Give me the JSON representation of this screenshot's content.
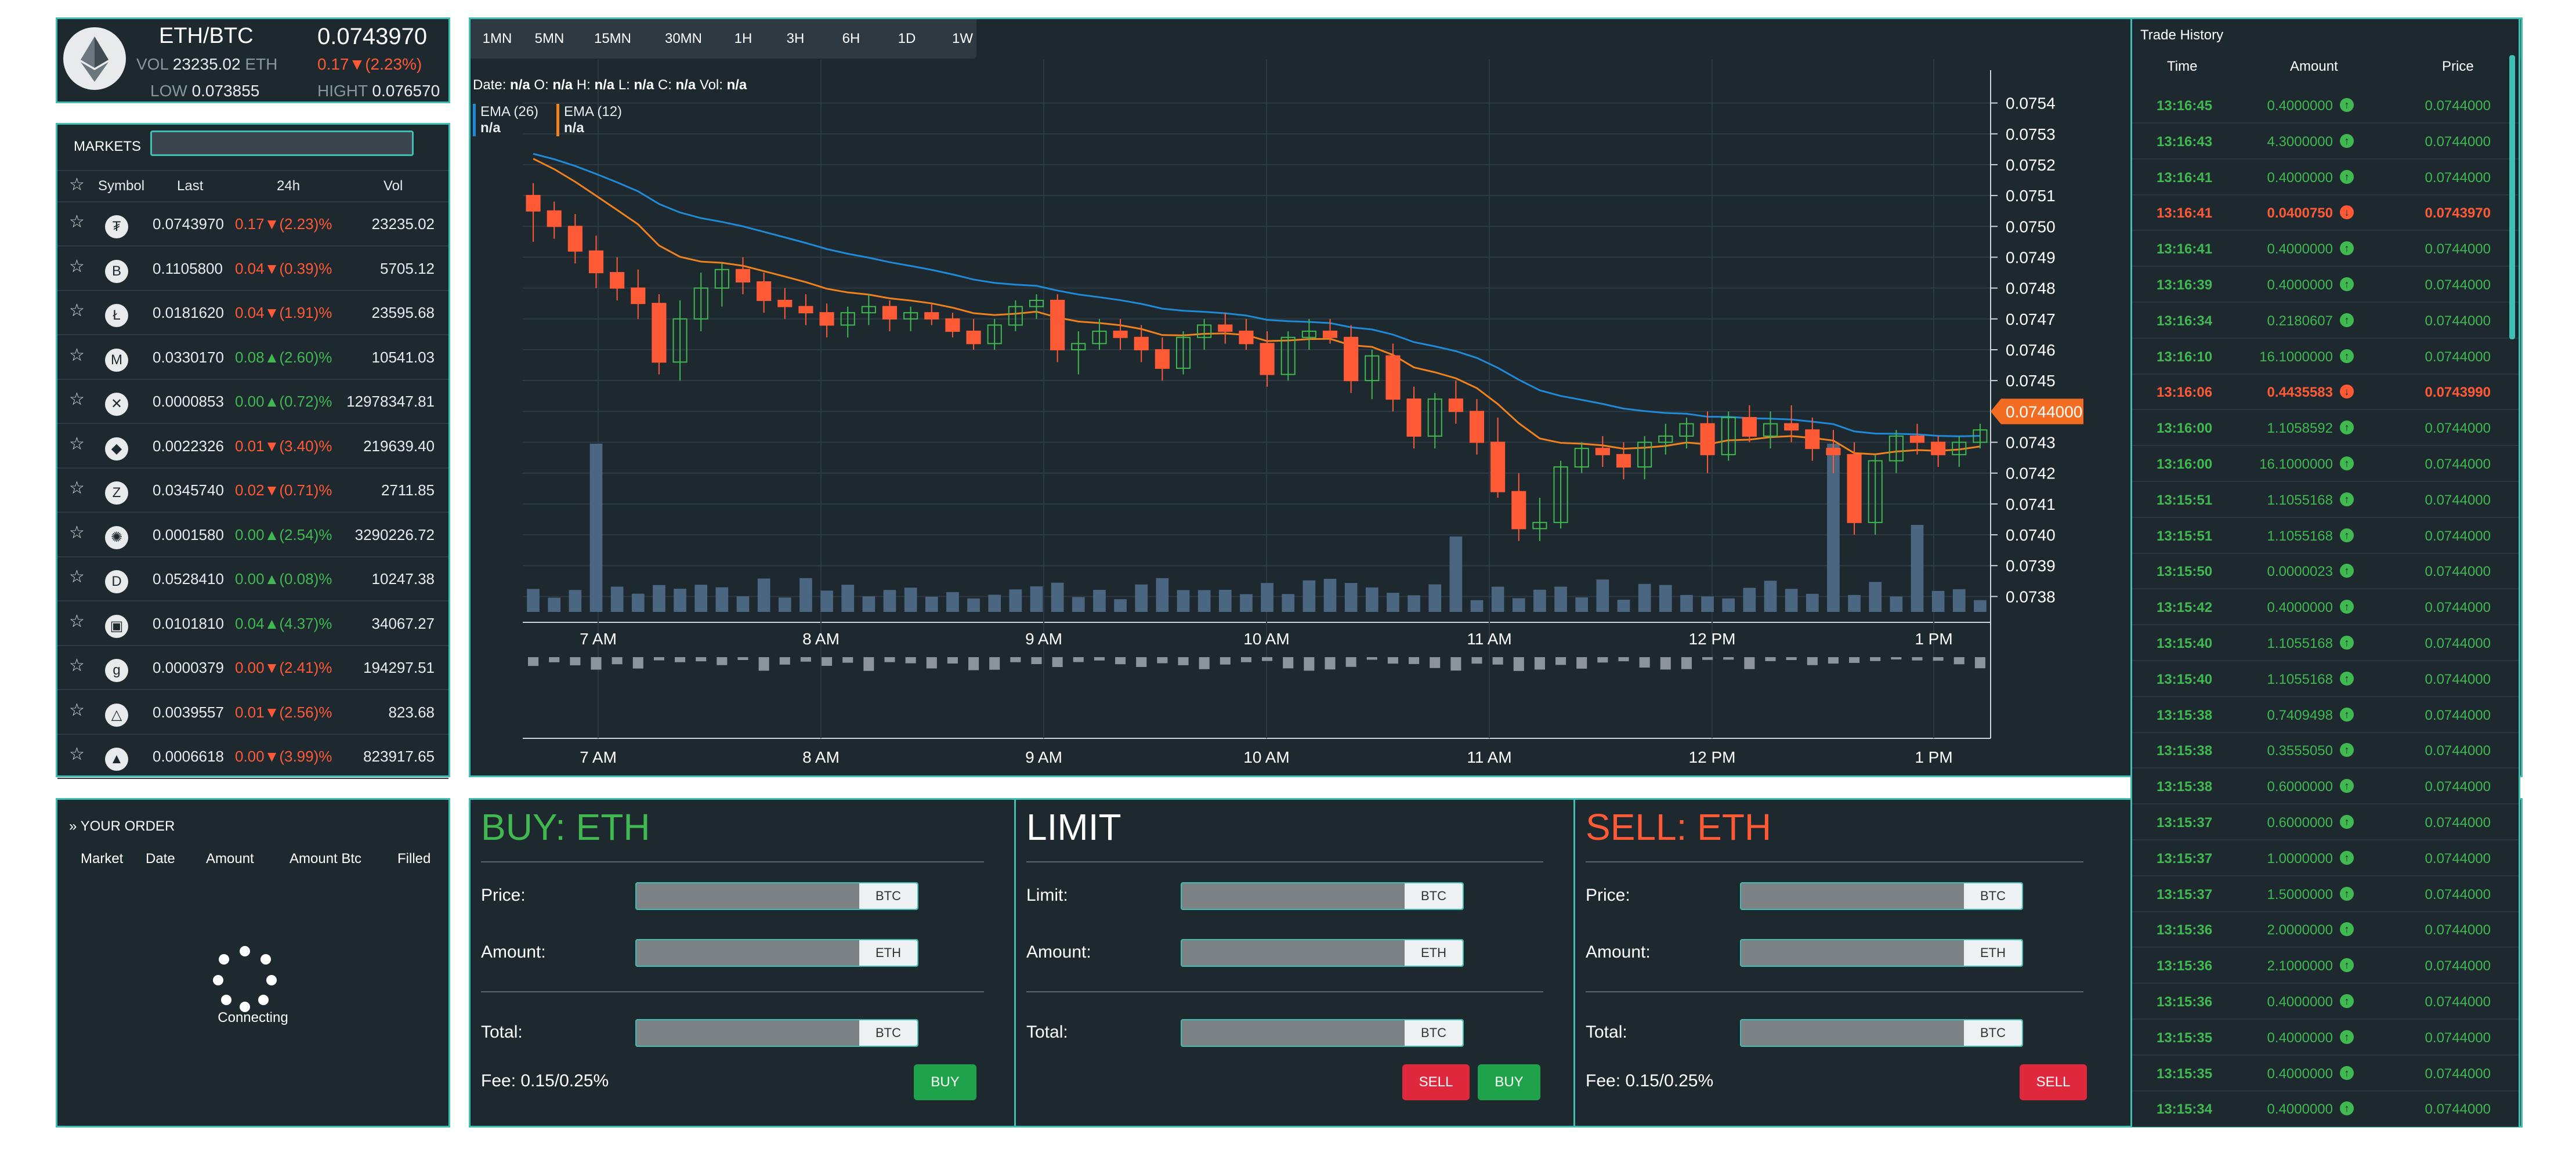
{
  "ticker": {
    "pair": "ETH/BTC",
    "price": "0.0743970",
    "vol_label": "VOL",
    "vol_value": "23235.02",
    "vol_unit": "ETH",
    "change": "0.17▼(2.23%)",
    "low_label": "LOW",
    "low_value": "0.073855",
    "high_label": "HIGHT",
    "high_value": "0.076570"
  },
  "markets": {
    "title": "MARKETS",
    "search_placeholder": "",
    "headers": {
      "symbol": "Symbol",
      "last": "Last",
      "h24": "24h",
      "vol": "Vol"
    },
    "rows": [
      {
        "icon": "tether-coin-icon",
        "glyph": "₮",
        "last": "0.0743970",
        "change": "0.17▼(2.23)%",
        "dir": "down",
        "vol": "23235.02"
      },
      {
        "icon": "bitcoin-coin-icon",
        "glyph": "B",
        "last": "0.1105800",
        "change": "0.04▼(0.39)%",
        "dir": "down",
        "vol": "5705.12"
      },
      {
        "icon": "litecoin-coin-icon",
        "glyph": "Ł",
        "last": "0.0181620",
        "change": "0.04▼(1.91)%",
        "dir": "down",
        "vol": "23595.68"
      },
      {
        "icon": "monero-coin-icon",
        "glyph": "M",
        "last": "0.0330170",
        "change": "0.08▲(2.60)%",
        "dir": "up",
        "vol": "10541.03"
      },
      {
        "icon": "ripple-coin-icon",
        "glyph": "✕",
        "last": "0.0000853",
        "change": "0.00▲(0.72)%",
        "dir": "up",
        "vol": "12978347.81"
      },
      {
        "icon": "ethereum-coin-icon",
        "glyph": "◆",
        "last": "0.0022326",
        "change": "0.01▼(3.40)%",
        "dir": "down",
        "vol": "219639.40"
      },
      {
        "icon": "zcash-coin-icon",
        "glyph": "Z",
        "last": "0.0345740",
        "change": "0.02▼(0.71)%",
        "dir": "down",
        "vol": "2711.85"
      },
      {
        "icon": "iota-coin-icon",
        "glyph": "✺",
        "last": "0.0001580",
        "change": "0.00▲(2.54)%",
        "dir": "up",
        "vol": "3290226.72"
      },
      {
        "icon": "dash-coin-icon",
        "glyph": "D",
        "last": "0.0528410",
        "change": "0.00▲(0.08)%",
        "dir": "up",
        "vol": "10247.38"
      },
      {
        "icon": "cube-coin-icon",
        "glyph": "▣",
        "last": "0.0101810",
        "change": "0.04▲(4.37)%",
        "dir": "up",
        "vol": "34067.27"
      },
      {
        "icon": "golem-coin-icon",
        "glyph": "g",
        "last": "0.0000379",
        "change": "0.00▼(2.41)%",
        "dir": "down",
        "vol": "194297.51"
      },
      {
        "icon": "triangle-coin-icon",
        "glyph": "△",
        "last": "0.0039557",
        "change": "0.01▼(2.56)%",
        "dir": "down",
        "vol": "823.68"
      },
      {
        "icon": "eos-coin-icon",
        "glyph": "▲",
        "last": "0.0006618",
        "change": "0.00▼(3.99)%",
        "dir": "down",
        "vol": "823917.65"
      }
    ]
  },
  "orders": {
    "title": "YOUR ORDER",
    "headers": {
      "market": "Market",
      "date": "Date",
      "amount": "Amount",
      "amount_btc": "Amount Btc",
      "filled": "Filled"
    },
    "status": "Connecting"
  },
  "chart": {
    "timeframes": [
      "1MN",
      "5MN",
      "15MN",
      "30MN",
      "1H",
      "3H",
      "6H",
      "1D",
      "1W"
    ],
    "ohlc": {
      "date_label": "Date:",
      "date": "n/a",
      "o_label": "O:",
      "o": "n/a",
      "h_label": "H:",
      "h": "n/a",
      "l_label": "L:",
      "l": "n/a",
      "c_label": "C:",
      "c": "n/a",
      "vol_label": "Vol:",
      "vol": "n/a"
    },
    "legend": [
      {
        "name": "EMA (26)",
        "value": "n/a",
        "color": "#1f8ad6"
      },
      {
        "name": "EMA (12)",
        "value": "n/a",
        "color": "#f0821e"
      }
    ],
    "last_price_label": "0.0744000",
    "up_color": "#3fb950",
    "down_color": "#ff5a36"
  },
  "chart_data": {
    "type": "candlestick",
    "x_ticks": [
      "7 AM",
      "8 AM",
      "9 AM",
      "10 AM",
      "11 AM",
      "12 PM",
      "1 PM"
    ],
    "y_ticks": [
      "0.0754",
      "0.0753",
      "0.0752",
      "0.0751",
      "0.0750",
      "0.0749",
      "0.0748",
      "0.0747",
      "0.0746",
      "0.0745",
      "0.0744",
      "0.0743",
      "0.0742",
      "0.0741",
      "0.0740",
      "0.0739",
      "0.0738"
    ],
    "ylim": [
      0.07375,
      0.07545
    ],
    "last_price": 0.0744,
    "candles": [
      [
        0.0751,
        0.07514,
        0.07495,
        0.07505
      ],
      [
        0.07505,
        0.07508,
        0.07496,
        0.075
      ],
      [
        0.075,
        0.07504,
        0.07488,
        0.07492
      ],
      [
        0.07492,
        0.07497,
        0.0748,
        0.07485
      ],
      [
        0.07485,
        0.0749,
        0.07476,
        0.0748
      ],
      [
        0.0748,
        0.07486,
        0.0747,
        0.07475
      ],
      [
        0.07475,
        0.07478,
        0.07452,
        0.07456
      ],
      [
        0.07456,
        0.07476,
        0.0745,
        0.0747
      ],
      [
        0.0747,
        0.07485,
        0.07466,
        0.0748
      ],
      [
        0.0748,
        0.07488,
        0.07474,
        0.07486
      ],
      [
        0.07486,
        0.0749,
        0.07478,
        0.07482
      ],
      [
        0.07482,
        0.07485,
        0.07472,
        0.07476
      ],
      [
        0.07476,
        0.0748,
        0.0747,
        0.07474
      ],
      [
        0.07474,
        0.07478,
        0.07468,
        0.07472
      ],
      [
        0.07472,
        0.07475,
        0.07464,
        0.07468
      ],
      [
        0.07468,
        0.07474,
        0.07464,
        0.07472
      ],
      [
        0.07472,
        0.07478,
        0.07468,
        0.07474
      ],
      [
        0.07474,
        0.07476,
        0.07466,
        0.0747
      ],
      [
        0.0747,
        0.07474,
        0.07466,
        0.07472
      ],
      [
        0.07472,
        0.07475,
        0.07468,
        0.0747
      ],
      [
        0.0747,
        0.07472,
        0.07464,
        0.07466
      ],
      [
        0.07466,
        0.0747,
        0.0746,
        0.07462
      ],
      [
        0.07462,
        0.0747,
        0.0746,
        0.07468
      ],
      [
        0.07468,
        0.07476,
        0.07466,
        0.07474
      ],
      [
        0.07474,
        0.07478,
        0.0747,
        0.07476
      ],
      [
        0.07476,
        0.07478,
        0.07456,
        0.0746
      ],
      [
        0.0746,
        0.07466,
        0.07452,
        0.07462
      ],
      [
        0.07462,
        0.0747,
        0.0746,
        0.07466
      ],
      [
        0.07466,
        0.0747,
        0.0746,
        0.07464
      ],
      [
        0.07464,
        0.07468,
        0.07456,
        0.0746
      ],
      [
        0.0746,
        0.07464,
        0.0745,
        0.07454
      ],
      [
        0.07454,
        0.07466,
        0.07452,
        0.07464
      ],
      [
        0.07464,
        0.0747,
        0.0746,
        0.07468
      ],
      [
        0.07468,
        0.07472,
        0.07462,
        0.07466
      ],
      [
        0.07466,
        0.0747,
        0.0746,
        0.07462
      ],
      [
        0.07462,
        0.07466,
        0.07448,
        0.07452
      ],
      [
        0.07452,
        0.07466,
        0.0745,
        0.07464
      ],
      [
        0.07464,
        0.0747,
        0.0746,
        0.07466
      ],
      [
        0.07466,
        0.0747,
        0.07462,
        0.07464
      ],
      [
        0.07464,
        0.07468,
        0.07446,
        0.0745
      ],
      [
        0.0745,
        0.0746,
        0.07444,
        0.07458
      ],
      [
        0.07458,
        0.07462,
        0.0744,
        0.07444
      ],
      [
        0.07444,
        0.07448,
        0.07428,
        0.07432
      ],
      [
        0.07432,
        0.07446,
        0.07428,
        0.07444
      ],
      [
        0.07444,
        0.0745,
        0.07436,
        0.0744
      ],
      [
        0.0744,
        0.07444,
        0.07426,
        0.0743
      ],
      [
        0.0743,
        0.07438,
        0.07412,
        0.07414
      ],
      [
        0.07414,
        0.0742,
        0.07398,
        0.07402
      ],
      [
        0.07402,
        0.07412,
        0.07398,
        0.07404
      ],
      [
        0.07404,
        0.07424,
        0.07402,
        0.07422
      ],
      [
        0.07422,
        0.0743,
        0.0742,
        0.07428
      ],
      [
        0.07428,
        0.07432,
        0.07422,
        0.07426
      ],
      [
        0.07426,
        0.0743,
        0.07418,
        0.07422
      ],
      [
        0.07422,
        0.07432,
        0.07418,
        0.0743
      ],
      [
        0.0743,
        0.07436,
        0.07426,
        0.07432
      ],
      [
        0.07432,
        0.07438,
        0.07428,
        0.07436
      ],
      [
        0.07436,
        0.0744,
        0.0742,
        0.07426
      ],
      [
        0.07426,
        0.0744,
        0.07424,
        0.07438
      ],
      [
        0.07438,
        0.07442,
        0.0743,
        0.07432
      ],
      [
        0.07432,
        0.0744,
        0.07428,
        0.07436
      ],
      [
        0.07436,
        0.07442,
        0.0743,
        0.07434
      ],
      [
        0.07434,
        0.07438,
        0.07424,
        0.07428
      ],
      [
        0.07428,
        0.07434,
        0.0742,
        0.07426
      ],
      [
        0.07426,
        0.0743,
        0.074,
        0.07404
      ],
      [
        0.07404,
        0.07426,
        0.074,
        0.07424
      ],
      [
        0.07424,
        0.07434,
        0.0742,
        0.07432
      ],
      [
        0.07432,
        0.07436,
        0.07426,
        0.0743
      ],
      [
        0.0743,
        0.07432,
        0.07422,
        0.07426
      ],
      [
        0.07426,
        0.07432,
        0.07422,
        0.0743
      ],
      [
        0.0743,
        0.07436,
        0.07428,
        0.07434
      ]
    ]
  },
  "trade": {
    "buy": {
      "title": "BUY: ETH",
      "price_label": "Price:",
      "price_unit": "BTC",
      "amount_label": "Amount:",
      "amount_unit": "ETH",
      "total_label": "Total:",
      "total_unit": "BTC",
      "fee": "Fee: 0.15/0.25%",
      "button": "BUY",
      "color": "#3fb950"
    },
    "limit": {
      "title": "LIMIT",
      "limit_label": "Limit:",
      "limit_unit": "BTC",
      "amount_label": "Amount:",
      "amount_unit": "ETH",
      "total_label": "Total:",
      "total_unit": "BTC",
      "sell_button": "SELL",
      "buy_button": "BUY"
    },
    "sell": {
      "title": "SELL: ETH",
      "price_label": "Price:",
      "price_unit": "BTC",
      "amount_label": "Amount:",
      "amount_unit": "ETH",
      "total_label": "Total:",
      "total_unit": "BTC",
      "fee": "Fee: 0.15/0.25%",
      "button": "SELL",
      "color": "#ff5a36"
    }
  },
  "history": {
    "title": "Trade History",
    "headers": {
      "time": "Time",
      "amount": "Amount",
      "price": "Price"
    },
    "rows": [
      {
        "time": "13:16:45",
        "amount": "0.4000000",
        "price": "0.0744000",
        "side": "buy"
      },
      {
        "time": "13:16:43",
        "amount": "4.3000000",
        "price": "0.0744000",
        "side": "buy"
      },
      {
        "time": "13:16:41",
        "amount": "0.4000000",
        "price": "0.0744000",
        "side": "buy"
      },
      {
        "time": "13:16:41",
        "amount": "0.0400750",
        "price": "0.0743970",
        "side": "sell"
      },
      {
        "time": "13:16:41",
        "amount": "0.4000000",
        "price": "0.0744000",
        "side": "buy"
      },
      {
        "time": "13:16:39",
        "amount": "0.4000000",
        "price": "0.0744000",
        "side": "buy"
      },
      {
        "time": "13:16:34",
        "amount": "0.2180607",
        "price": "0.0744000",
        "side": "buy"
      },
      {
        "time": "13:16:10",
        "amount": "16.1000000",
        "price": "0.0744000",
        "side": "buy"
      },
      {
        "time": "13:16:06",
        "amount": "0.4435583",
        "price": "0.0743990",
        "side": "sell"
      },
      {
        "time": "13:16:00",
        "amount": "1.1058592",
        "price": "0.0744000",
        "side": "buy"
      },
      {
        "time": "13:16:00",
        "amount": "16.1000000",
        "price": "0.0744000",
        "side": "buy"
      },
      {
        "time": "13:15:51",
        "amount": "1.1055168",
        "price": "0.0744000",
        "side": "buy"
      },
      {
        "time": "13:15:51",
        "amount": "1.1055168",
        "price": "0.0744000",
        "side": "buy"
      },
      {
        "time": "13:15:50",
        "amount": "0.0000023",
        "price": "0.0744000",
        "side": "buy"
      },
      {
        "time": "13:15:42",
        "amount": "0.4000000",
        "price": "0.0744000",
        "side": "buy"
      },
      {
        "time": "13:15:40",
        "amount": "1.1055168",
        "price": "0.0744000",
        "side": "buy"
      },
      {
        "time": "13:15:40",
        "amount": "1.1055168",
        "price": "0.0744000",
        "side": "buy"
      },
      {
        "time": "13:15:38",
        "amount": "0.7409498",
        "price": "0.0744000",
        "side": "buy"
      },
      {
        "time": "13:15:38",
        "amount": "0.3555050",
        "price": "0.0744000",
        "side": "buy"
      },
      {
        "time": "13:15:38",
        "amount": "0.6000000",
        "price": "0.0744000",
        "side": "buy"
      },
      {
        "time": "13:15:37",
        "amount": "0.6000000",
        "price": "0.0744000",
        "side": "buy"
      },
      {
        "time": "13:15:37",
        "amount": "1.0000000",
        "price": "0.0744000",
        "side": "buy"
      },
      {
        "time": "13:15:37",
        "amount": "1.5000000",
        "price": "0.0744000",
        "side": "buy"
      },
      {
        "time": "13:15:36",
        "amount": "2.0000000",
        "price": "0.0744000",
        "side": "buy"
      },
      {
        "time": "13:15:36",
        "amount": "2.1000000",
        "price": "0.0744000",
        "side": "buy"
      },
      {
        "time": "13:15:36",
        "amount": "0.4000000",
        "price": "0.0744000",
        "side": "buy"
      },
      {
        "time": "13:15:35",
        "amount": "0.4000000",
        "price": "0.0744000",
        "side": "buy"
      },
      {
        "time": "13:15:35",
        "amount": "0.4000000",
        "price": "0.0744000",
        "side": "buy"
      },
      {
        "time": "13:15:34",
        "amount": "0.4000000",
        "price": "0.0744000",
        "side": "buy"
      }
    ]
  }
}
